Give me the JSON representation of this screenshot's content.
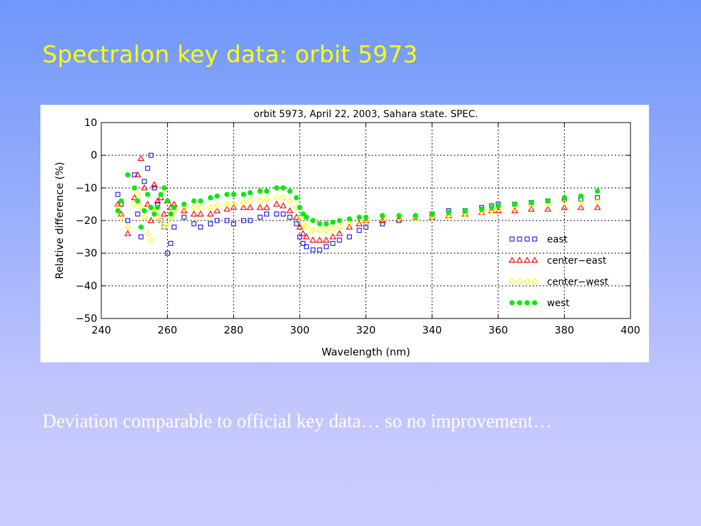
{
  "slide": {
    "title": "Spectralon key data: orbit 5973",
    "caption": "Deviation comparable to official key data… so no improvement…"
  },
  "chart_data": {
    "type": "scatter",
    "title": "orbit 5973, April 22, 2003, Sahara state. SPEC.",
    "xlabel": "Wavelength  (nm)",
    "ylabel": "Relative  difference  (%)",
    "xlim": [
      240,
      400
    ],
    "ylim": [
      -50,
      10
    ],
    "xticks": [
      240,
      260,
      280,
      300,
      320,
      340,
      360,
      380,
      400
    ],
    "yticks": [
      10,
      0,
      -10,
      -20,
      -30,
      -40,
      -50
    ],
    "grid": true,
    "legend_position": "right",
    "series": [
      {
        "name": "east",
        "marker": "square",
        "color": "#2020e0",
        "x": [
          245,
          246,
          248,
          250,
          251,
          252,
          253,
          254,
          255,
          256,
          257,
          258,
          259,
          260,
          261,
          262,
          265,
          268,
          270,
          273,
          275,
          278,
          280,
          283,
          285,
          288,
          290,
          293,
          295,
          297,
          299,
          300,
          301,
          302,
          304,
          306,
          308,
          310,
          312,
          315,
          318,
          320,
          325,
          330,
          335,
          340,
          345,
          350,
          355,
          358,
          360,
          365,
          370,
          375,
          380,
          385,
          390
        ],
        "y": [
          -12,
          -15,
          -20,
          -6,
          -18,
          -25,
          -8,
          -4,
          0,
          -10,
          -15,
          -20,
          -22,
          -30,
          -27,
          -22,
          -19,
          -21,
          -22,
          -21,
          -20,
          -20,
          -21,
          -20,
          -20,
          -19,
          -18,
          -18,
          -18,
          -19,
          -21,
          -25,
          -27,
          -28,
          -29,
          -29,
          -28,
          -27,
          -26,
          -25,
          -23,
          -22,
          -21,
          -20,
          -19,
          -18,
          -17,
          -17,
          -16,
          -15.5,
          -15,
          -15,
          -14.5,
          -14,
          -13.5,
          -13.5,
          -13
        ]
      },
      {
        "name": "center−east",
        "marker": "triangle",
        "color": "#ff0000",
        "x": [
          245,
          246,
          248,
          250,
          251,
          252,
          253,
          254,
          255,
          256,
          257,
          258,
          259,
          260,
          261,
          262,
          265,
          268,
          270,
          273,
          275,
          278,
          280,
          283,
          285,
          288,
          290,
          293,
          295,
          297,
          299,
          300,
          301,
          302,
          304,
          306,
          308,
          310,
          312,
          315,
          318,
          320,
          325,
          330,
          335,
          340,
          345,
          350,
          355,
          358,
          360,
          365,
          370,
          375,
          380,
          385,
          390
        ],
        "y": [
          -15,
          -18,
          -24,
          -13,
          -6,
          -1,
          -10,
          -15,
          -20,
          -9,
          -14,
          -13,
          -18,
          -14,
          -16,
          -15,
          -17,
          -18,
          -18,
          -18,
          -17,
          -16.5,
          -16,
          -16,
          -16,
          -16,
          -16,
          -15,
          -15.5,
          -17,
          -19,
          -22,
          -24,
          -25,
          -26,
          -26,
          -26,
          -25,
          -24,
          -22,
          -21,
          -20,
          -20,
          -19.5,
          -19,
          -19,
          -18.5,
          -18,
          -17.5,
          -17,
          -17,
          -17,
          -16.5,
          -16.5,
          -16,
          -16,
          -16
        ]
      },
      {
        "name": "center−west",
        "marker": "diamond",
        "color": "#ffff00",
        "x": [
          245,
          246,
          248,
          250,
          251,
          252,
          253,
          254,
          255,
          256,
          257,
          258,
          259,
          260,
          261,
          262,
          265,
          268,
          270,
          273,
          275,
          278,
          280,
          283,
          285,
          288,
          290,
          293,
          295,
          297,
          299,
          300,
          301,
          302,
          304,
          306,
          308,
          310,
          312,
          315,
          318,
          320,
          325,
          330,
          335,
          340,
          345,
          350,
          355,
          358,
          360,
          365,
          370,
          375,
          380,
          385,
          390
        ],
        "y": [
          -16,
          -19,
          -22,
          -15,
          -12,
          -16,
          -19,
          -24,
          -26,
          -17,
          -19,
          -20,
          -22,
          -21,
          -19,
          -17,
          -16,
          -16,
          -16,
          -16,
          -15.5,
          -15,
          -15,
          -14.5,
          -14,
          -14,
          -13.5,
          -13,
          -13,
          -14,
          -16,
          -19,
          -21,
          -22,
          -23,
          -23,
          -23,
          -22.5,
          -22,
          -21,
          -20,
          -20,
          -19.5,
          -19.5,
          -19.5,
          -19,
          -18.5,
          -18,
          -17.5,
          -17,
          -16.5,
          -16,
          -15.5,
          -15,
          -14.5,
          -14.5,
          -14
        ]
      },
      {
        "name": "west",
        "marker": "circle",
        "color": "#00ee00",
        "x": [
          245,
          246,
          248,
          250,
          251,
          252,
          253,
          254,
          255,
          256,
          257,
          258,
          259,
          260,
          261,
          262,
          265,
          268,
          270,
          273,
          275,
          278,
          280,
          283,
          285,
          288,
          290,
          293,
          295,
          297,
          299,
          300,
          301,
          302,
          304,
          306,
          308,
          310,
          312,
          315,
          318,
          320,
          325,
          330,
          335,
          340,
          345,
          350,
          355,
          358,
          360,
          365,
          370,
          375,
          380,
          385,
          390
        ],
        "y": [
          -17,
          -14,
          -6,
          -10,
          -14,
          -22,
          -17,
          -12,
          -16,
          -18,
          -16,
          -12,
          -10,
          -14,
          -18,
          -16,
          -15,
          -14,
          -14,
          -13,
          -12.5,
          -12,
          -12,
          -12,
          -11.5,
          -11,
          -11,
          -10,
          -10,
          -11,
          -13,
          -16,
          -18,
          -19,
          -20,
          -21,
          -21,
          -20.5,
          -20,
          -19.5,
          -19,
          -19,
          -18.5,
          -18.5,
          -18.5,
          -18,
          -17.5,
          -17,
          -16.5,
          -16,
          -15.5,
          -15,
          -14.5,
          -14,
          -13,
          -12.5,
          -11
        ]
      }
    ]
  }
}
